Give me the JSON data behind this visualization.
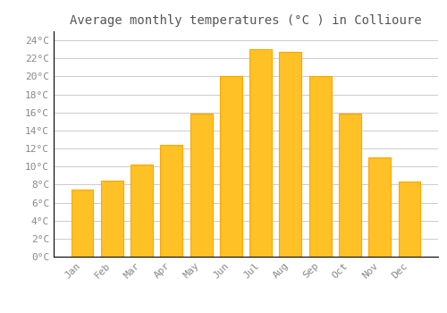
{
  "title": "Average monthly temperatures (°C ) in Collioure",
  "months": [
    "Jan",
    "Feb",
    "Mar",
    "Apr",
    "May",
    "Jun",
    "Jul",
    "Aug",
    "Sep",
    "Oct",
    "Nov",
    "Dec"
  ],
  "temperatures": [
    7.4,
    8.4,
    10.2,
    12.4,
    15.9,
    20.0,
    23.0,
    22.7,
    20.0,
    15.9,
    11.0,
    8.3
  ],
  "bar_color": "#FFC125",
  "bar_edge_color": "#FFA500",
  "background_color": "#FFFFFF",
  "grid_color": "#CCCCCC",
  "ylim": [
    0,
    25
  ],
  "yticks": [
    0,
    2,
    4,
    6,
    8,
    10,
    12,
    14,
    16,
    18,
    20,
    22,
    24
  ],
  "title_fontsize": 10,
  "tick_fontsize": 8,
  "font_family": "monospace",
  "title_color": "#555555",
  "tick_color": "#888888"
}
